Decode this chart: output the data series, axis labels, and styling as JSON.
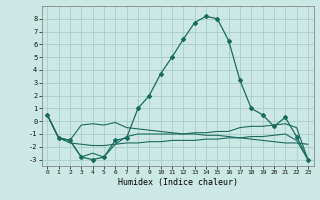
{
  "xlabel": "Humidex (Indice chaleur)",
  "xlim": [
    -0.5,
    23.5
  ],
  "ylim": [
    -3.5,
    9.0
  ],
  "yticks": [
    -3,
    -2,
    -1,
    0,
    1,
    2,
    3,
    4,
    5,
    6,
    7,
    8
  ],
  "xticks": [
    0,
    1,
    2,
    3,
    4,
    5,
    6,
    7,
    8,
    9,
    10,
    11,
    12,
    13,
    14,
    15,
    16,
    17,
    18,
    19,
    20,
    21,
    22,
    23
  ],
  "bg_color": "#cce8e4",
  "line_color": "#1a6b5e",
  "grid_color": "#a0c8c4",
  "line1_x": [
    0,
    1,
    2,
    3,
    4,
    5,
    6,
    7,
    8,
    9,
    10,
    11,
    12,
    13,
    14,
    15,
    16,
    17,
    18,
    19,
    20,
    21,
    22,
    23
  ],
  "line1_y": [
    0.5,
    -1.3,
    -1.5,
    -2.8,
    -3.0,
    -2.8,
    -1.5,
    -1.3,
    1.0,
    2.0,
    3.7,
    5.0,
    6.4,
    7.7,
    8.2,
    8.0,
    6.3,
    3.2,
    1.0,
    0.5,
    -0.4,
    0.3,
    -1.2,
    -3.0
  ],
  "line2_x": [
    0,
    1,
    2,
    3,
    4,
    5,
    6,
    7,
    8,
    9,
    10,
    11,
    12,
    13,
    14,
    15,
    16,
    17,
    18,
    19,
    20,
    21,
    22,
    23
  ],
  "line2_y": [
    0.5,
    -1.3,
    -1.5,
    -0.3,
    -0.2,
    -0.3,
    -0.1,
    -0.5,
    -0.6,
    -0.7,
    -0.8,
    -0.9,
    -1.0,
    -1.0,
    -1.1,
    -1.1,
    -1.2,
    -1.3,
    -1.4,
    -1.5,
    -1.6,
    -1.7,
    -1.7,
    -1.8
  ],
  "line3_x": [
    0,
    1,
    2,
    3,
    4,
    5,
    6,
    7,
    8,
    9,
    10,
    11,
    12,
    13,
    14,
    15,
    16,
    17,
    18,
    19,
    20,
    21,
    22,
    23
  ],
  "line3_y": [
    0.5,
    -1.3,
    -1.7,
    -1.8,
    -1.9,
    -1.9,
    -1.8,
    -1.7,
    -1.7,
    -1.6,
    -1.6,
    -1.5,
    -1.5,
    -1.5,
    -1.4,
    -1.4,
    -1.3,
    -1.3,
    -1.2,
    -1.2,
    -1.1,
    -1.0,
    -1.5,
    -3.0
  ],
  "line4_x": [
    0,
    1,
    2,
    3,
    4,
    5,
    6,
    7,
    8,
    9,
    10,
    11,
    12,
    13,
    14,
    15,
    16,
    17,
    18,
    19,
    20,
    21,
    22,
    23
  ],
  "line4_y": [
    0.5,
    -1.3,
    -1.5,
    -2.8,
    -2.5,
    -2.8,
    -1.8,
    -1.2,
    -1.0,
    -1.0,
    -1.0,
    -1.0,
    -1.0,
    -0.9,
    -0.9,
    -0.8,
    -0.8,
    -0.5,
    -0.4,
    -0.4,
    -0.3,
    -0.2,
    -0.5,
    -3.0
  ]
}
